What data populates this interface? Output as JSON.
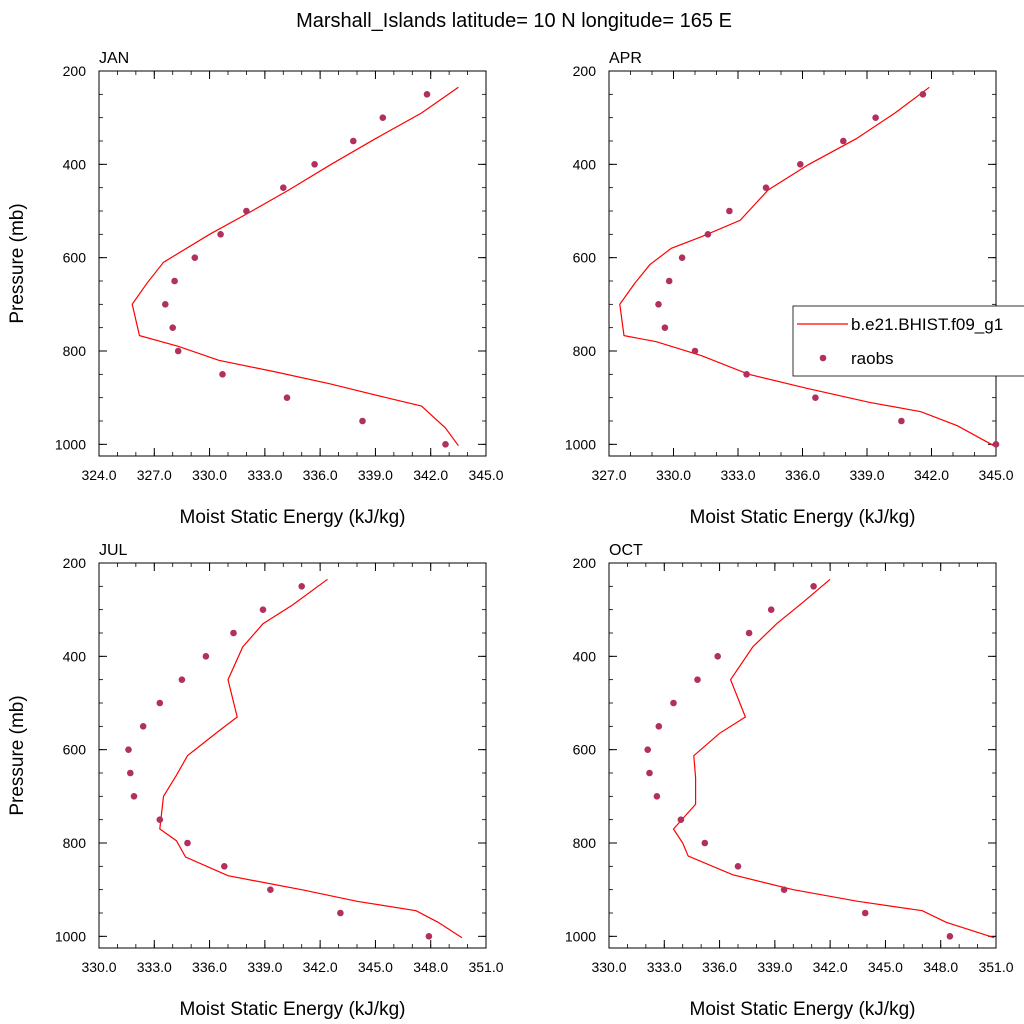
{
  "figure": {
    "title": "Marshall_Islands  latitude= 10 N longitude= 165 E"
  },
  "colors": {
    "model_line": "#ff0000",
    "obs_marker": "#b03060",
    "axis": "#000000"
  },
  "legend": {
    "placement": "right of APR panel",
    "entries": [
      {
        "label": "b.e21.BHIST.f09_g1",
        "kind": "line"
      },
      {
        "label": "raobs",
        "kind": "marker"
      }
    ]
  },
  "chart_data": [
    {
      "type": "line",
      "title": "JAN",
      "xlabel": "Moist Static Energy (kJ/kg)",
      "ylabel": "Pressure (mb)",
      "xlim": [
        324.0,
        345.0
      ],
      "ylim": [
        1025,
        200
      ],
      "xticks": [
        "324.0",
        "327.0",
        "330.0",
        "333.0",
        "336.0",
        "339.0",
        "342.0",
        "345.0"
      ],
      "yticks": [
        "200",
        "400",
        "600",
        "800",
        "1000"
      ],
      "grid": false,
      "series": [
        {
          "name": "b.e21.BHIST.f09_g1",
          "style": "line",
          "points": [
            [
              343.5,
              235
            ],
            [
              341.5,
              290
            ],
            [
              339.0,
              345
            ],
            [
              336.6,
              400
            ],
            [
              334.3,
              455
            ],
            [
              332.3,
              500
            ],
            [
              330.0,
              550
            ],
            [
              327.5,
              610
            ],
            [
              326.6,
              655
            ],
            [
              325.8,
              700
            ],
            [
              326.2,
              767
            ],
            [
              328.3,
              790
            ],
            [
              330.5,
              820
            ],
            [
              333.6,
              845
            ],
            [
              336.5,
              870
            ],
            [
              339.6,
              900
            ],
            [
              341.5,
              918
            ],
            [
              342.8,
              965
            ],
            [
              343.5,
              1003
            ]
          ]
        },
        {
          "name": "raobs",
          "style": "marker",
          "points": [
            [
              341.8,
              250
            ],
            [
              339.4,
              300
            ],
            [
              337.8,
              350
            ],
            [
              335.7,
              400
            ],
            [
              334.0,
              450
            ],
            [
              332.0,
              500
            ],
            [
              330.6,
              550
            ],
            [
              329.2,
              600
            ],
            [
              328.1,
              650
            ],
            [
              327.6,
              700
            ],
            [
              328.0,
              750
            ],
            [
              328.3,
              800
            ],
            [
              330.7,
              850
            ],
            [
              334.2,
              900
            ],
            [
              338.3,
              950
            ],
            [
              342.8,
              1000
            ]
          ]
        }
      ]
    },
    {
      "type": "line",
      "title": "APR",
      "xlabel": "Moist Static Energy (kJ/kg)",
      "ylabel": "",
      "xlim": [
        327.0,
        345.0
      ],
      "ylim": [
        1025,
        200
      ],
      "xticks": [
        "327.0",
        "330.0",
        "333.0",
        "336.0",
        "339.0",
        "342.0",
        "345.0"
      ],
      "yticks": [
        "200",
        "400",
        "600",
        "800",
        "1000"
      ],
      "grid": false,
      "series": [
        {
          "name": "b.e21.BHIST.f09_g1",
          "style": "line",
          "points": [
            [
              341.9,
              235
            ],
            [
              340.3,
              290
            ],
            [
              338.5,
              345
            ],
            [
              336.3,
              400
            ],
            [
              334.4,
              455
            ],
            [
              333.1,
              520
            ],
            [
              331.3,
              555
            ],
            [
              329.9,
              580
            ],
            [
              328.9,
              615
            ],
            [
              328.2,
              655
            ],
            [
              327.5,
              700
            ],
            [
              327.7,
              767
            ],
            [
              329.2,
              780
            ],
            [
              331.3,
              810
            ],
            [
              333.5,
              850
            ],
            [
              336.2,
              880
            ],
            [
              339.1,
              910
            ],
            [
              341.5,
              930
            ],
            [
              343.2,
              960
            ],
            [
              344.9,
              1003
            ]
          ]
        },
        {
          "name": "raobs",
          "style": "marker",
          "points": [
            [
              341.6,
              250
            ],
            [
              339.4,
              300
            ],
            [
              337.9,
              350
            ],
            [
              335.9,
              400
            ],
            [
              334.3,
              450
            ],
            [
              332.6,
              500
            ],
            [
              331.6,
              550
            ],
            [
              330.4,
              600
            ],
            [
              329.8,
              650
            ],
            [
              329.3,
              700
            ],
            [
              329.6,
              750
            ],
            [
              331.0,
              800
            ],
            [
              333.4,
              850
            ],
            [
              336.6,
              900
            ],
            [
              340.6,
              950
            ],
            [
              345.0,
              1000
            ]
          ]
        }
      ]
    },
    {
      "type": "line",
      "title": "JUL",
      "xlabel": "Moist Static Energy (kJ/kg)",
      "ylabel": "Pressure (mb)",
      "xlim": [
        330.0,
        351.0
      ],
      "ylim": [
        1025,
        200
      ],
      "xticks": [
        "330.0",
        "333.0",
        "336.0",
        "339.0",
        "342.0",
        "345.0",
        "348.0",
        "351.0"
      ],
      "yticks": [
        "200",
        "400",
        "600",
        "800",
        "1000"
      ],
      "grid": false,
      "series": [
        {
          "name": "b.e21.BHIST.f09_g1",
          "style": "line",
          "points": [
            [
              342.4,
              235
            ],
            [
              340.5,
              290
            ],
            [
              338.9,
              330
            ],
            [
              337.8,
              380
            ],
            [
              337.0,
              450
            ],
            [
              337.5,
              530
            ],
            [
              336.5,
              560
            ],
            [
              334.8,
              613
            ],
            [
              334.2,
              655
            ],
            [
              333.5,
              700
            ],
            [
              333.3,
              770
            ],
            [
              334.2,
              795
            ],
            [
              334.7,
              830
            ],
            [
              337.0,
              870
            ],
            [
              341.0,
              900
            ],
            [
              344.0,
              925
            ],
            [
              347.2,
              945
            ],
            [
              348.4,
              970
            ],
            [
              349.7,
              1003
            ]
          ]
        },
        {
          "name": "raobs",
          "style": "marker",
          "points": [
            [
              341.0,
              250
            ],
            [
              338.9,
              300
            ],
            [
              337.3,
              350
            ],
            [
              335.8,
              400
            ],
            [
              334.5,
              450
            ],
            [
              333.3,
              500
            ],
            [
              332.4,
              550
            ],
            [
              331.6,
              600
            ],
            [
              331.7,
              650
            ],
            [
              331.9,
              700
            ],
            [
              333.3,
              750
            ],
            [
              334.8,
              800
            ],
            [
              336.8,
              850
            ],
            [
              339.3,
              900
            ],
            [
              343.1,
              950
            ],
            [
              347.9,
              1000
            ]
          ]
        }
      ]
    },
    {
      "type": "line",
      "title": "OCT",
      "xlabel": "Moist Static Energy (kJ/kg)",
      "ylabel": "",
      "xlim": [
        330.0,
        351.0
      ],
      "ylim": [
        1025,
        200
      ],
      "xticks": [
        "330.0",
        "333.0",
        "336.0",
        "339.0",
        "342.0",
        "345.0",
        "348.0",
        "351.0"
      ],
      "yticks": [
        "200",
        "400",
        "600",
        "800",
        "1000"
      ],
      "grid": false,
      "series": [
        {
          "name": "b.e21.BHIST.f09_g1",
          "style": "line",
          "points": [
            [
              342.0,
              235
            ],
            [
              340.5,
              285
            ],
            [
              339.1,
              330
            ],
            [
              337.8,
              380
            ],
            [
              336.6,
              450
            ],
            [
              337.4,
              530
            ],
            [
              336.0,
              565
            ],
            [
              334.6,
              613
            ],
            [
              334.7,
              660
            ],
            [
              334.7,
              717
            ],
            [
              333.5,
              770
            ],
            [
              334.0,
              800
            ],
            [
              334.3,
              828
            ],
            [
              336.7,
              868
            ],
            [
              340.0,
              900
            ],
            [
              343.5,
              925
            ],
            [
              347.0,
              945
            ],
            [
              348.3,
              970
            ],
            [
              350.9,
              1003
            ]
          ]
        },
        {
          "name": "raobs",
          "style": "marker",
          "points": [
            [
              341.1,
              250
            ],
            [
              338.8,
              300
            ],
            [
              337.6,
              350
            ],
            [
              335.9,
              400
            ],
            [
              334.8,
              450
            ],
            [
              333.5,
              500
            ],
            [
              332.7,
              550
            ],
            [
              332.1,
              600
            ],
            [
              332.2,
              650
            ],
            [
              332.6,
              700
            ],
            [
              333.9,
              750
            ],
            [
              335.2,
              800
            ],
            [
              337.0,
              850
            ],
            [
              339.5,
              900
            ],
            [
              343.9,
              950
            ],
            [
              348.5,
              1000
            ]
          ]
        }
      ]
    }
  ]
}
